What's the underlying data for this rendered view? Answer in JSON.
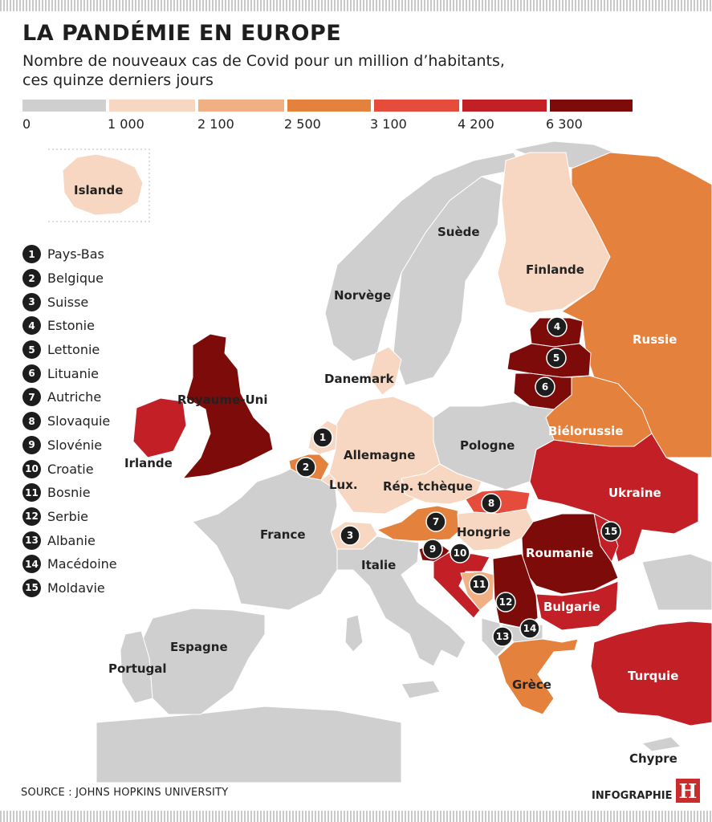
{
  "title": "LA PANDÉMIE EN EUROPE",
  "subtitle_line1": "Nombre de nouveaux cas de Covid pour un million d’habitants,",
  "subtitle_line2": "ces quinze derniers jours",
  "legend": {
    "colors": [
      "#cfcfcf",
      "#f7d7c1",
      "#f1b084",
      "#e4813d",
      "#e64c3c",
      "#c22026",
      "#7d0b09"
    ],
    "ticks": [
      "0",
      "1 000",
      "2 100",
      "2 500",
      "3 100",
      "4 200",
      "6 300"
    ]
  },
  "countries": {
    "islande": {
      "label": "Islande",
      "color": "#f7d7c1"
    },
    "suede": {
      "label": "Suède",
      "color": "#cfcfcf"
    },
    "norvege": {
      "label": "Norvège",
      "color": "#cfcfcf"
    },
    "finlande": {
      "label": "Finlande",
      "color": "#f7d7c1"
    },
    "russie": {
      "label": "Russie",
      "color": "#e4813d"
    },
    "danemark": {
      "label": "Danemark",
      "color": "#f7d7c1"
    },
    "royaume_uni": {
      "label": "Royaume-Uni",
      "color": "#7d0b09"
    },
    "irlande": {
      "label": "Irlande",
      "color": "#c22026"
    },
    "bielorussie": {
      "label": "Biélorussie",
      "color": "#e4813d"
    },
    "allemagne": {
      "label": "Allemagne",
      "color": "#f7d7c1"
    },
    "pologne": {
      "label": "Pologne",
      "color": "#cfcfcf"
    },
    "lux": {
      "label": "Lux.",
      "color": "#f7d7c1"
    },
    "rep_tcheque": {
      "label": "Rép. tchèque",
      "color": "#f7d7c1"
    },
    "ukraine": {
      "label": "Ukraine",
      "color": "#c22026"
    },
    "france": {
      "label": "France",
      "color": "#cfcfcf"
    },
    "hongrie": {
      "label": "Hongrie",
      "color": "#f7d7c1"
    },
    "roumanie": {
      "label": "Roumanie",
      "color": "#7d0b09"
    },
    "italie": {
      "label": "Italie",
      "color": "#cfcfcf"
    },
    "bulgarie": {
      "label": "Bulgarie",
      "color": "#c22026"
    },
    "espagne": {
      "label": "Espagne",
      "color": "#cfcfcf"
    },
    "portugal": {
      "label": "Portugal",
      "color": "#cfcfcf"
    },
    "grece": {
      "label": "Grèce",
      "color": "#e4813d"
    },
    "turquie": {
      "label": "Turquie",
      "color": "#c22026"
    },
    "chypre": {
      "label": "Chypre",
      "color": "#cfcfcf"
    },
    "pays_bas": {
      "color": "#f7d7c1"
    },
    "belgique": {
      "color": "#e4813d"
    },
    "suisse": {
      "color": "#f7d7c1"
    },
    "estonie": {
      "color": "#7d0b09"
    },
    "lettonie": {
      "color": "#7d0b09"
    },
    "lituanie": {
      "color": "#7d0b09"
    },
    "autriche": {
      "color": "#e4813d"
    },
    "slovaquie": {
      "color": "#e64c3c"
    },
    "slovenie": {
      "color": "#7d0b09"
    },
    "croatie": {
      "color": "#c22026"
    },
    "bosnie": {
      "color": "#f1b084"
    },
    "serbie": {
      "color": "#7d0b09"
    },
    "albanie": {
      "color": "#cfcfcf"
    },
    "macedoine": {
      "color": "#cfcfcf"
    },
    "moldavie": {
      "color": "#c22026"
    },
    "other": {
      "color": "#cfcfcf"
    }
  },
  "key": [
    {
      "num": "1",
      "name": "Pays-Bas"
    },
    {
      "num": "2",
      "name": "Belgique"
    },
    {
      "num": "3",
      "name": "Suisse"
    },
    {
      "num": "4",
      "name": "Estonie"
    },
    {
      "num": "5",
      "name": "Lettonie"
    },
    {
      "num": "6",
      "name": "Lituanie"
    },
    {
      "num": "7",
      "name": "Autriche"
    },
    {
      "num": "8",
      "name": "Slovaquie"
    },
    {
      "num": "9",
      "name": "Slovénie"
    },
    {
      "num": "10",
      "name": "Croatie"
    },
    {
      "num": "11",
      "name": "Bosnie"
    },
    {
      "num": "12",
      "name": "Serbie"
    },
    {
      "num": "13",
      "name": "Albanie"
    },
    {
      "num": "14",
      "name": "Macédoine"
    },
    {
      "num": "15",
      "name": "Moldavie"
    }
  ],
  "source": "SOURCE : JOHNS HOPKINS UNIVERSITY",
  "credit": "INFOGRAPHIE",
  "logo": "H"
}
